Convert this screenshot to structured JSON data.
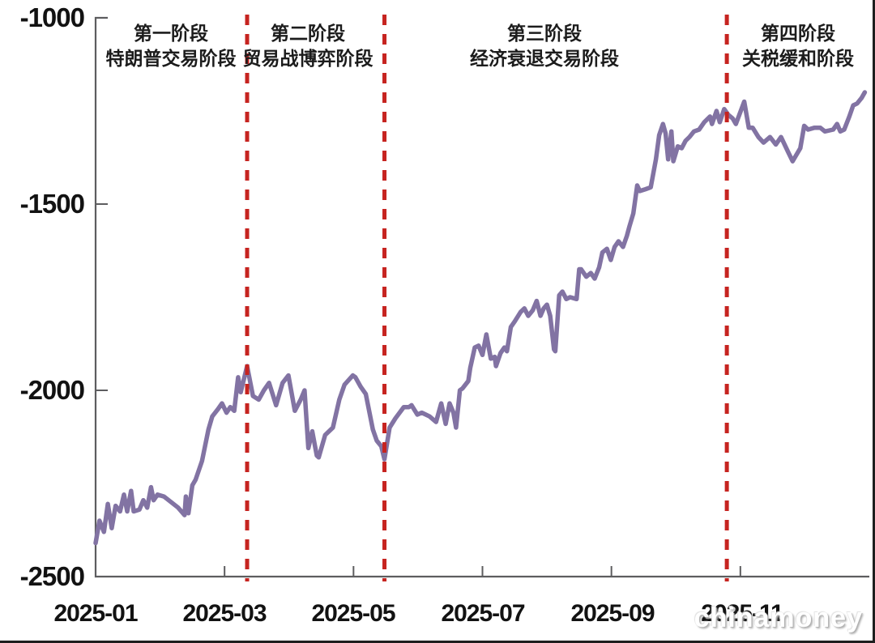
{
  "page": {
    "watermark": "chinamoney"
  },
  "chart_data": {
    "type": "line",
    "title": "",
    "xlabel": "",
    "ylabel": "",
    "grid": false,
    "legend": "none",
    "ylim": [
      -2500,
      -1000
    ],
    "xlim_months_from_2025_01": [
      0,
      12
    ],
    "y_ticks": [
      {
        "value": -1000,
        "label": "-1000"
      },
      {
        "value": -1500,
        "label": "-1500"
      },
      {
        "value": -2000,
        "label": "-2000"
      },
      {
        "value": -2500,
        "label": "-2500"
      }
    ],
    "x_ticks": [
      {
        "month": 0,
        "label": "2025-01"
      },
      {
        "month": 2,
        "label": "2025-03"
      },
      {
        "month": 4,
        "label": "2025-05"
      },
      {
        "month": 6,
        "label": "2025-07"
      },
      {
        "month": 8,
        "label": "2025-09"
      },
      {
        "month": 10,
        "label": "2025-11"
      }
    ],
    "phase_lines": {
      "color": "#c62420",
      "style": "dashed",
      "months": [
        2.35,
        4.48,
        9.79
      ]
    },
    "annotations": [
      {
        "line1": "第一阶段",
        "line2": "特朗普交易阶段",
        "center_month": 1.17
      },
      {
        "line1": "第二阶段",
        "line2": "贸易战博弈阶段",
        "center_month": 3.27
      },
      {
        "line1": "第三阶段",
        "line2": "经济衰退交易阶段",
        "center_month": 6.96
      },
      {
        "line1": "第四阶段",
        "line2": "关税缓和阶段",
        "center_month": 10.89
      }
    ],
    "series": [
      {
        "color": "#8273a3",
        "points": [
          [
            0.0,
            -2410
          ],
          [
            0.06,
            -2350
          ],
          [
            0.13,
            -2380
          ],
          [
            0.19,
            -2305
          ],
          [
            0.25,
            -2370
          ],
          [
            0.31,
            -2310
          ],
          [
            0.38,
            -2325
          ],
          [
            0.44,
            -2280
          ],
          [
            0.49,
            -2325
          ],
          [
            0.55,
            -2270
          ],
          [
            0.59,
            -2325
          ],
          [
            0.68,
            -2320
          ],
          [
            0.74,
            -2295
          ],
          [
            0.8,
            -2315
          ],
          [
            0.86,
            -2260
          ],
          [
            0.9,
            -2295
          ],
          [
            0.96,
            -2280
          ],
          [
            1.06,
            -2285
          ],
          [
            1.28,
            -2315
          ],
          [
            1.38,
            -2335
          ],
          [
            1.4,
            -2285
          ],
          [
            1.44,
            -2330
          ],
          [
            1.5,
            -2255
          ],
          [
            1.55,
            -2240
          ],
          [
            1.65,
            -2190
          ],
          [
            1.75,
            -2105
          ],
          [
            1.81,
            -2070
          ],
          [
            1.9,
            -2050
          ],
          [
            1.96,
            -2035
          ],
          [
            2.03,
            -2060
          ],
          [
            2.09,
            -2045
          ],
          [
            2.15,
            -2055
          ],
          [
            2.21,
            -1965
          ],
          [
            2.25,
            -2005
          ],
          [
            2.35,
            -1935
          ],
          [
            2.44,
            -2015
          ],
          [
            2.53,
            -2025
          ],
          [
            2.61,
            -2000
          ],
          [
            2.69,
            -1980
          ],
          [
            2.8,
            -2040
          ],
          [
            2.9,
            -1980
          ],
          [
            2.99,
            -1960
          ],
          [
            3.09,
            -2055
          ],
          [
            3.18,
            -2025
          ],
          [
            3.24,
            -2000
          ],
          [
            3.3,
            -2155
          ],
          [
            3.36,
            -2110
          ],
          [
            3.43,
            -2175
          ],
          [
            3.46,
            -2180
          ],
          [
            3.56,
            -2120
          ],
          [
            3.68,
            -2100
          ],
          [
            3.78,
            -2025
          ],
          [
            3.86,
            -1985
          ],
          [
            3.99,
            -1960
          ],
          [
            4.03,
            -1965
          ],
          [
            4.11,
            -1990
          ],
          [
            4.19,
            -2010
          ],
          [
            4.3,
            -2105
          ],
          [
            4.36,
            -2135
          ],
          [
            4.43,
            -2150
          ],
          [
            4.48,
            -2185
          ],
          [
            4.56,
            -2100
          ],
          [
            4.65,
            -2075
          ],
          [
            4.78,
            -2045
          ],
          [
            4.86,
            -2045
          ],
          [
            4.9,
            -2040
          ],
          [
            4.99,
            -2065
          ],
          [
            5.06,
            -2060
          ],
          [
            5.18,
            -2070
          ],
          [
            5.28,
            -2085
          ],
          [
            5.36,
            -2035
          ],
          [
            5.43,
            -2090
          ],
          [
            5.49,
            -2035
          ],
          [
            5.55,
            -2060
          ],
          [
            5.59,
            -2100
          ],
          [
            5.65,
            -2000
          ],
          [
            5.69,
            -1995
          ],
          [
            5.78,
            -1975
          ],
          [
            5.81,
            -1940
          ],
          [
            5.88,
            -1885
          ],
          [
            5.94,
            -1880
          ],
          [
            6.0,
            -1905
          ],
          [
            6.06,
            -1850
          ],
          [
            6.13,
            -1915
          ],
          [
            6.19,
            -1910
          ],
          [
            6.21,
            -1935
          ],
          [
            6.28,
            -1900
          ],
          [
            6.34,
            -1885
          ],
          [
            6.38,
            -1895
          ],
          [
            6.44,
            -1830
          ],
          [
            6.5,
            -1815
          ],
          [
            6.59,
            -1790
          ],
          [
            6.65,
            -1780
          ],
          [
            6.71,
            -1800
          ],
          [
            6.78,
            -1785
          ],
          [
            6.84,
            -1760
          ],
          [
            6.9,
            -1800
          ],
          [
            6.95,
            -1780
          ],
          [
            7.0,
            -1770
          ],
          [
            7.05,
            -1800
          ],
          [
            7.11,
            -1890
          ],
          [
            7.13,
            -1895
          ],
          [
            7.19,
            -1745
          ],
          [
            7.24,
            -1735
          ],
          [
            7.3,
            -1755
          ],
          [
            7.36,
            -1750
          ],
          [
            7.46,
            -1755
          ],
          [
            7.5,
            -1675
          ],
          [
            7.53,
            -1675
          ],
          [
            7.61,
            -1695
          ],
          [
            7.68,
            -1685
          ],
          [
            7.74,
            -1700
          ],
          [
            7.81,
            -1670
          ],
          [
            7.86,
            -1630
          ],
          [
            7.93,
            -1620
          ],
          [
            7.99,
            -1650
          ],
          [
            8.05,
            -1615
          ],
          [
            8.11,
            -1600
          ],
          [
            8.18,
            -1615
          ],
          [
            8.24,
            -1585
          ],
          [
            8.28,
            -1560
          ],
          [
            8.34,
            -1525
          ],
          [
            8.4,
            -1450
          ],
          [
            8.44,
            -1465
          ],
          [
            8.53,
            -1460
          ],
          [
            8.61,
            -1455
          ],
          [
            8.69,
            -1380
          ],
          [
            8.74,
            -1315
          ],
          [
            8.8,
            -1285
          ],
          [
            8.84,
            -1310
          ],
          [
            8.88,
            -1380
          ],
          [
            8.93,
            -1305
          ],
          [
            8.96,
            -1385
          ],
          [
            9.03,
            -1345
          ],
          [
            9.09,
            -1350
          ],
          [
            9.15,
            -1330
          ],
          [
            9.21,
            -1320
          ],
          [
            9.28,
            -1305
          ],
          [
            9.36,
            -1300
          ],
          [
            9.44,
            -1280
          ],
          [
            9.53,
            -1265
          ],
          [
            9.56,
            -1285
          ],
          [
            9.63,
            -1250
          ],
          [
            9.68,
            -1280
          ],
          [
            9.75,
            -1245
          ],
          [
            9.81,
            -1260
          ],
          [
            9.88,
            -1270
          ],
          [
            9.93,
            -1285
          ],
          [
            10.06,
            -1225
          ],
          [
            10.13,
            -1295
          ],
          [
            10.19,
            -1295
          ],
          [
            10.28,
            -1320
          ],
          [
            10.36,
            -1335
          ],
          [
            10.46,
            -1320
          ],
          [
            10.55,
            -1340
          ],
          [
            10.63,
            -1320
          ],
          [
            10.74,
            -1360
          ],
          [
            10.81,
            -1385
          ],
          [
            10.93,
            -1350
          ],
          [
            10.99,
            -1290
          ],
          [
            11.05,
            -1300
          ],
          [
            11.15,
            -1295
          ],
          [
            11.24,
            -1295
          ],
          [
            11.31,
            -1305
          ],
          [
            11.44,
            -1300
          ],
          [
            11.5,
            -1285
          ],
          [
            11.55,
            -1305
          ],
          [
            11.61,
            -1300
          ],
          [
            11.69,
            -1265
          ],
          [
            11.75,
            -1235
          ],
          [
            11.81,
            -1230
          ],
          [
            11.88,
            -1215
          ],
          [
            11.93,
            -1200
          ]
        ]
      }
    ]
  }
}
